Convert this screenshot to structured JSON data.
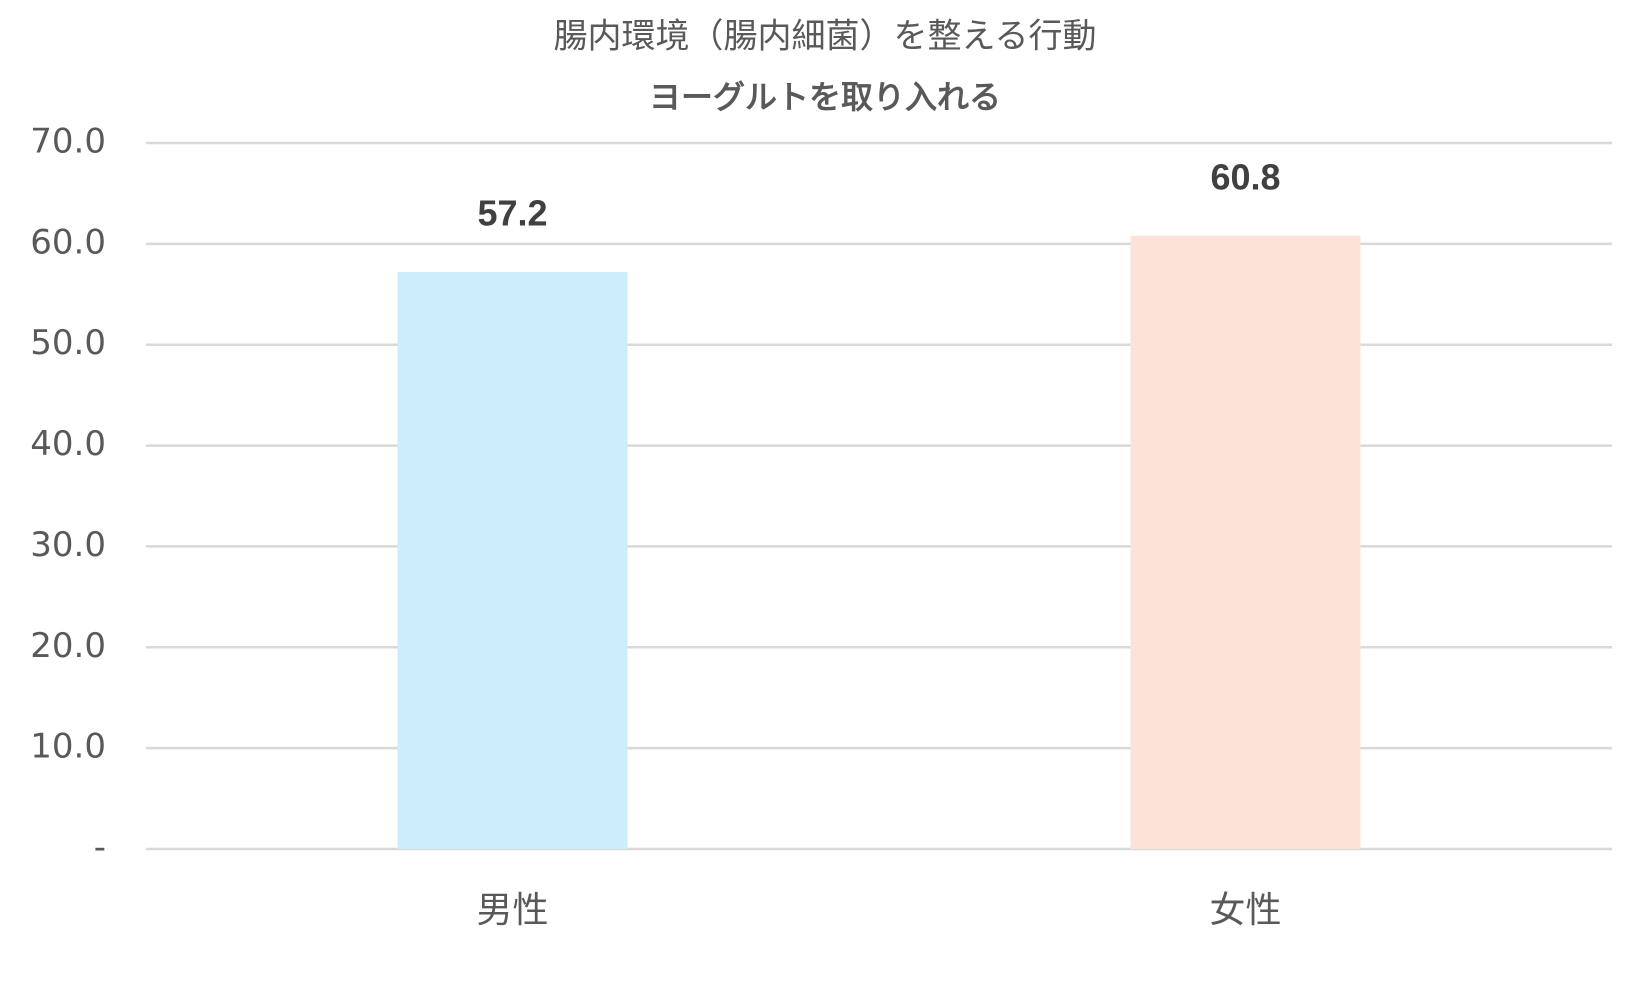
{
  "chart_data": {
    "type": "bar",
    "title": "腸内環境（腸内細菌）を整える行動",
    "subtitle": "ヨーグルトを取り入れる",
    "categories": [
      "男性",
      "女性"
    ],
    "values": [
      57.2,
      60.8
    ],
    "colors": [
      "#cdedfb",
      "#fbe3d8"
    ],
    "ylim": [
      0,
      70
    ],
    "yticks": [
      {
        "value": 0,
        "label": "-"
      },
      {
        "value": 10,
        "label": "10.0"
      },
      {
        "value": 20,
        "label": "20.0"
      },
      {
        "value": 30,
        "label": "30.0"
      },
      {
        "value": 40,
        "label": "40.0"
      },
      {
        "value": 50,
        "label": "50.0"
      },
      {
        "value": 60,
        "label": "60.0"
      },
      {
        "value": 70,
        "label": "70.0"
      }
    ],
    "grid": true
  }
}
